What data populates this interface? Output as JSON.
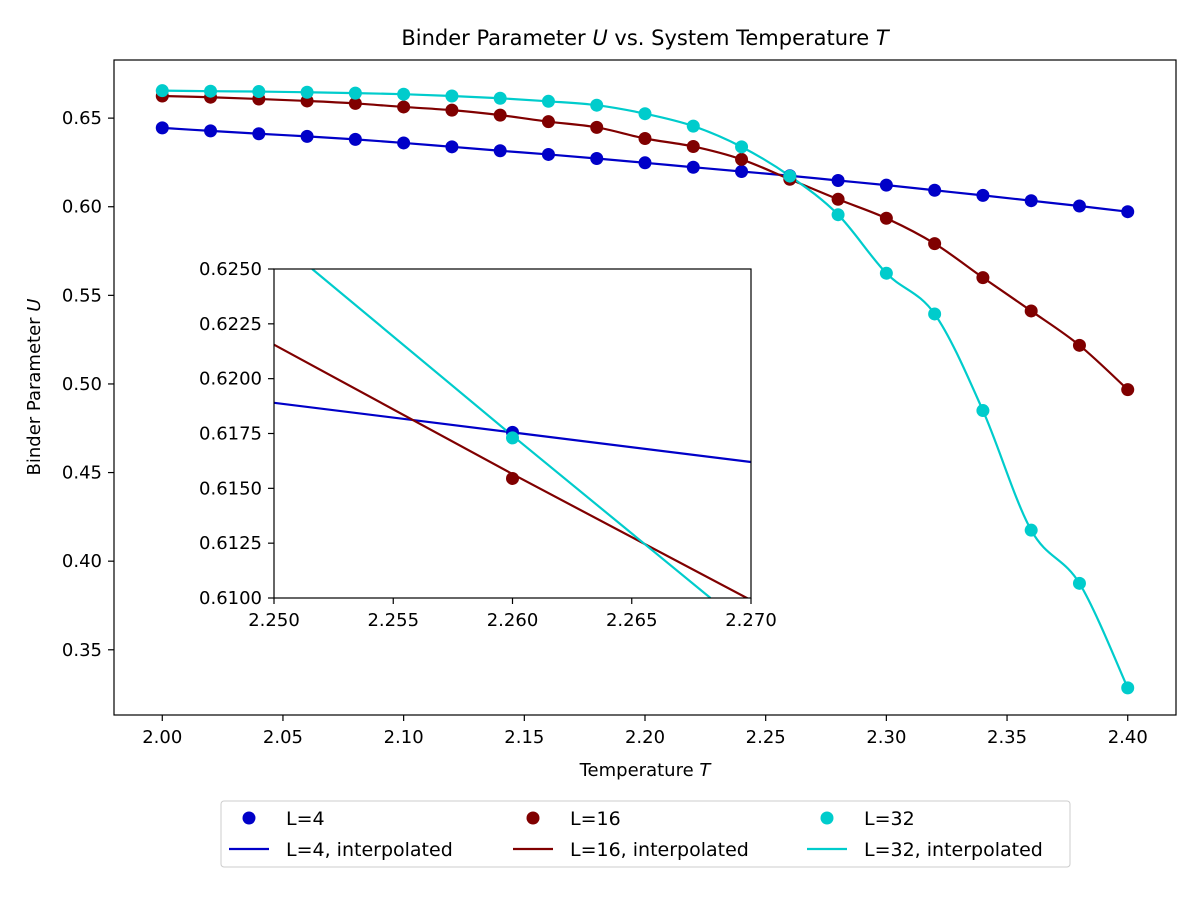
{
  "chart_data": {
    "type": "line",
    "title": "Binder Parameter U vs. System Temperature T",
    "title_parts": {
      "pre": "Binder Parameter ",
      "var1": "U",
      "mid": " vs. System Temperature ",
      "var2": "T"
    },
    "xlabel": "Temperature T",
    "xlabel_parts": {
      "pre": "Temperature ",
      "var": "T"
    },
    "ylabel": "Binder Parameter U",
    "ylabel_parts": {
      "pre": "Binder Parameter ",
      "var": "U"
    },
    "xlim": [
      1.98,
      2.42
    ],
    "ylim": [
      0.3132,
      0.6828
    ],
    "xticks": [
      2.0,
      2.05,
      2.1,
      2.15,
      2.2,
      2.25,
      2.3,
      2.35,
      2.4
    ],
    "xtick_labels": [
      "2.00",
      "2.05",
      "2.10",
      "2.15",
      "2.20",
      "2.25",
      "2.30",
      "2.35",
      "2.40"
    ],
    "yticks": [
      0.35,
      0.4,
      0.45,
      0.5,
      0.55,
      0.6,
      0.65
    ],
    "ytick_labels": [
      "0.35",
      "0.40",
      "0.45",
      "0.50",
      "0.55",
      "0.60",
      "0.65"
    ],
    "grid": false,
    "legend_position": "bottom-center, outside",
    "x": [
      2.0,
      2.02,
      2.04,
      2.06,
      2.08,
      2.1,
      2.12,
      2.14,
      2.16,
      2.18,
      2.2,
      2.22,
      2.24,
      2.26,
      2.28,
      2.3,
      2.32,
      2.34,
      2.36,
      2.38,
      2.4
    ],
    "series": [
      {
        "name": "L=4",
        "interp_name": "L=4, interpolated",
        "color": "#0000c8",
        "values": [
          0.6445,
          0.6428,
          0.6412,
          0.6397,
          0.638,
          0.636,
          0.6338,
          0.6316,
          0.6295,
          0.6272,
          0.6248,
          0.6223,
          0.6199,
          0.6175,
          0.6148,
          0.6122,
          0.6093,
          0.6064,
          0.6034,
          0.6004,
          0.5972
        ]
      },
      {
        "name": "L=16",
        "interp_name": "L=16, interpolated",
        "color": "#800000",
        "values": [
          0.6625,
          0.6618,
          0.6608,
          0.6597,
          0.6583,
          0.6563,
          0.6545,
          0.6517,
          0.648,
          0.6448,
          0.6385,
          0.634,
          0.6267,
          0.6155,
          0.6042,
          0.5935,
          0.5792,
          0.56,
          0.5412,
          0.5218,
          0.4968
        ]
      },
      {
        "name": "L=32",
        "interp_name": "L=32, interpolated",
        "color": "#00cccc",
        "values": [
          0.6655,
          0.6652,
          0.665,
          0.6646,
          0.6641,
          0.6635,
          0.6625,
          0.6612,
          0.6595,
          0.6573,
          0.6525,
          0.6455,
          0.6338,
          0.6173,
          0.5955,
          0.5625,
          0.5395,
          0.485,
          0.4175,
          0.3875,
          0.3285
        ]
      }
    ],
    "inset": {
      "xlim": [
        2.25,
        2.27
      ],
      "ylim": [
        0.61,
        0.625
      ],
      "xticks": [
        2.25,
        2.255,
        2.26,
        2.265,
        2.27
      ],
      "xtick_labels": [
        "2.250",
        "2.255",
        "2.260",
        "2.265",
        "2.270"
      ],
      "yticks": [
        0.61,
        0.6125,
        0.615,
        0.6175,
        0.62,
        0.6225,
        0.625
      ],
      "ytick_labels": [
        "0.6100",
        "0.6125",
        "0.6150",
        "0.6175",
        "0.6200",
        "0.6225",
        "0.6250"
      ],
      "lines": [
        {
          "name": "L=4, interpolated",
          "x": [
            2.25,
            2.26,
            2.27
          ],
          "values": [
            0.6189,
            0.61755,
            0.6162
          ]
        },
        {
          "name": "L=16, interpolated",
          "x": [
            2.25,
            2.26,
            2.27
          ],
          "values": [
            0.62155,
            0.61565,
            0.6099
          ]
        },
        {
          "name": "L=32, interpolated",
          "x": [
            2.2516,
            2.26,
            2.2683
          ],
          "values": [
            0.625,
            0.6174,
            0.61
          ]
        }
      ],
      "points": [
        {
          "name": "L=4",
          "x": 2.26,
          "value": 0.61755
        },
        {
          "name": "L=16",
          "x": 2.26,
          "value": 0.61545
        },
        {
          "name": "L=32",
          "x": 2.26,
          "value": 0.6173
        }
      ]
    },
    "legend": [
      {
        "label": "L=4",
        "kind": "marker",
        "series": 0
      },
      {
        "label": "L=16",
        "kind": "marker",
        "series": 1
      },
      {
        "label": "L=32",
        "kind": "marker",
        "series": 2
      },
      {
        "label": "L=4, interpolated",
        "kind": "line",
        "series": 0
      },
      {
        "label": "L=16, interpolated",
        "kind": "line",
        "series": 1
      },
      {
        "label": "L=32, interpolated",
        "kind": "line",
        "series": 2
      }
    ]
  }
}
